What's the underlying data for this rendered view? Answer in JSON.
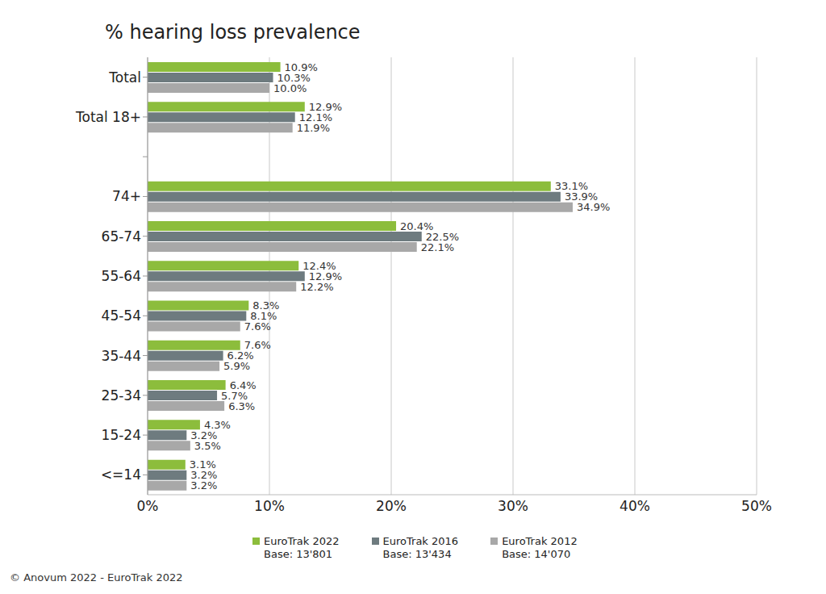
{
  "chart_data": {
    "type": "bar",
    "title": "% hearing loss prevalence",
    "orientation": "horizontal",
    "stacked": false,
    "grid": true,
    "legend": "bottom",
    "data_labels": true,
    "caption": "© Anovum 2022 - EuroTrak 2022",
    "categories": [
      "Total",
      "Total 18+",
      null,
      "74+",
      "65-74",
      "55-64",
      "45-54",
      "35-44",
      "25-34",
      "15-24",
      "<=14"
    ],
    "xlim": [
      0,
      50
    ],
    "xticks": [
      {
        "value": 0,
        "label": "0%"
      },
      {
        "value": 10,
        "label": "10%"
      },
      {
        "value": 20,
        "label": "20%"
      },
      {
        "value": 30,
        "label": "30%"
      },
      {
        "value": 40,
        "label": "40%"
      },
      {
        "value": 50,
        "label": "50%"
      }
    ],
    "series": [
      {
        "name": "EuroTrak 2022\nBase: 13'801",
        "color": "#8cbd3c",
        "values": [
          10.9,
          12.9,
          null,
          33.1,
          20.4,
          12.4,
          8.3,
          7.6,
          6.4,
          4.3,
          3.1
        ],
        "value_labels": [
          "10.9%",
          "12.9%",
          null,
          "33.1%",
          "20.4%",
          "12.4%",
          "8.3%",
          "7.6%",
          "6.4%",
          "4.3%",
          "3.1%"
        ]
      },
      {
        "name": "EuroTrak 2016\nBase: 13'434",
        "color": "#6e7b7f",
        "values": [
          10.3,
          12.1,
          null,
          33.9,
          22.5,
          12.9,
          8.1,
          6.2,
          5.7,
          3.2,
          3.2
        ],
        "value_labels": [
          "10.3%",
          "12.1%",
          null,
          "33.9%",
          "22.5%",
          "12.9%",
          "8.1%",
          "6.2%",
          "5.7%",
          "3.2%",
          "3.2%"
        ]
      },
      {
        "name": "EuroTrak 2012\nBase: 14'070",
        "color": "#a8a8a8",
        "values": [
          10.0,
          11.9,
          null,
          34.9,
          22.1,
          12.2,
          7.6,
          5.9,
          6.3,
          3.5,
          3.2
        ],
        "value_labels": [
          "10.0%",
          "11.9%",
          null,
          "34.9%",
          "22.1%",
          "12.2%",
          "7.6%",
          "5.9%",
          "6.3%",
          "3.5%",
          "3.2%"
        ]
      }
    ]
  }
}
